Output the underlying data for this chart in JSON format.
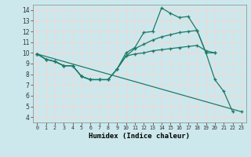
{
  "xlabel": "Humidex (Indice chaleur)",
  "xlim": [
    -0.5,
    23.5
  ],
  "ylim": [
    3.5,
    14.5
  ],
  "xticks": [
    0,
    1,
    2,
    3,
    4,
    5,
    6,
    7,
    8,
    9,
    10,
    11,
    12,
    13,
    14,
    15,
    16,
    17,
    18,
    19,
    20,
    21,
    22,
    23
  ],
  "yticks": [
    4,
    5,
    6,
    7,
    8,
    9,
    10,
    11,
    12,
    13,
    14
  ],
  "bg_color": "#cce8ec",
  "grid_color": "#f0d8d8",
  "line_color": "#1e7a6a",
  "series": [
    {
      "x": [
        0,
        1,
        2,
        3,
        4,
        5,
        6,
        7,
        8,
        9,
        10,
        11,
        12,
        13,
        14,
        15,
        16,
        17,
        18,
        19,
        20,
        21,
        22
      ],
      "y": [
        9.9,
        9.4,
        9.2,
        8.8,
        8.8,
        7.8,
        7.5,
        7.5,
        7.5,
        8.5,
        10.0,
        10.5,
        11.9,
        12.0,
        14.2,
        13.7,
        13.3,
        13.4,
        12.1,
        10.0,
        7.5,
        6.4,
        4.5
      ]
    },
    {
      "x": [
        0,
        1,
        2,
        3,
        4,
        5,
        6,
        7,
        8,
        9,
        10,
        11,
        12,
        13,
        14,
        15,
        16,
        17,
        18,
        19,
        20
      ],
      "y": [
        9.9,
        9.4,
        9.2,
        8.8,
        8.8,
        7.8,
        7.5,
        7.5,
        7.5,
        8.5,
        9.7,
        10.4,
        10.8,
        11.2,
        11.5,
        11.7,
        11.9,
        12.0,
        12.1,
        10.0,
        10.0
      ]
    },
    {
      "x": [
        0,
        1,
        2,
        3,
        4,
        5,
        6,
        7,
        8,
        9,
        10,
        11,
        12,
        13,
        14,
        15,
        16,
        17,
        18,
        19,
        20
      ],
      "y": [
        9.9,
        9.4,
        9.2,
        8.8,
        8.8,
        7.8,
        7.5,
        7.5,
        7.5,
        8.5,
        9.7,
        9.9,
        10.0,
        10.2,
        10.3,
        10.4,
        10.5,
        10.6,
        10.7,
        10.2,
        10.0
      ]
    },
    {
      "x": [
        0,
        23
      ],
      "y": [
        9.9,
        4.5
      ]
    }
  ]
}
